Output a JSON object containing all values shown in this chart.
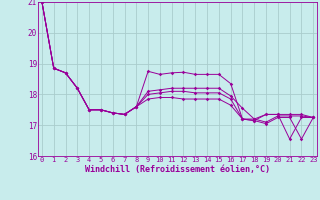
{
  "title": "Windchill (Refroidissement éolien,°C)",
  "bg_color": "#c8ecec",
  "line_color": "#990099",
  "grid_color": "#aacccc",
  "x_min": 0,
  "x_max": 23,
  "y_min": 16,
  "y_max": 21,
  "x_ticks": [
    0,
    1,
    2,
    3,
    4,
    5,
    6,
    7,
    8,
    9,
    10,
    11,
    12,
    13,
    14,
    15,
    16,
    17,
    18,
    19,
    20,
    21,
    22,
    23
  ],
  "y_ticks": [
    16,
    17,
    18,
    19,
    20,
    21
  ],
  "series": [
    [
      21.0,
      18.85,
      18.7,
      18.2,
      17.5,
      17.5,
      17.4,
      17.35,
      17.6,
      18.75,
      18.65,
      18.7,
      18.72,
      18.65,
      18.65,
      18.65,
      18.35,
      17.2,
      17.15,
      17.35,
      17.35,
      16.55,
      17.25,
      17.25
    ],
    [
      21.0,
      18.85,
      18.7,
      18.2,
      17.5,
      17.5,
      17.4,
      17.35,
      17.6,
      18.1,
      18.15,
      18.2,
      18.2,
      18.2,
      18.2,
      18.2,
      17.95,
      17.55,
      17.2,
      17.35,
      17.35,
      17.35,
      17.35,
      17.25
    ],
    [
      21.0,
      18.85,
      18.7,
      18.2,
      17.5,
      17.5,
      17.4,
      17.35,
      17.6,
      18.0,
      18.05,
      18.1,
      18.1,
      18.05,
      18.05,
      18.05,
      17.85,
      17.2,
      17.2,
      17.1,
      17.3,
      17.3,
      17.3,
      17.25
    ],
    [
      21.0,
      18.85,
      18.7,
      18.2,
      17.5,
      17.5,
      17.4,
      17.35,
      17.6,
      17.85,
      17.9,
      17.9,
      17.85,
      17.85,
      17.85,
      17.85,
      17.65,
      17.2,
      17.15,
      17.05,
      17.25,
      17.25,
      16.55,
      17.25
    ]
  ]
}
